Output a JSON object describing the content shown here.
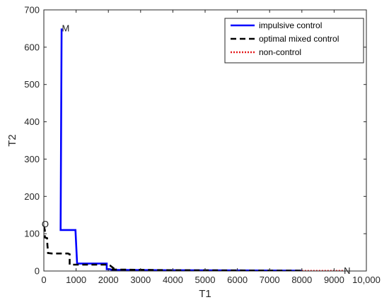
{
  "chart_data": {
    "type": "line",
    "xlabel": "T1",
    "ylabel": "T2",
    "xlim": [
      0,
      10000
    ],
    "ylim": [
      0,
      700
    ],
    "xticks": [
      0,
      1000,
      2000,
      3000,
      4000,
      5000,
      6000,
      7000,
      8000,
      9000,
      10000
    ],
    "xtick_labels": [
      "0",
      "1000",
      "2000",
      "3000",
      "4000",
      "5000",
      "6000",
      "7000",
      "8000",
      "9000",
      "10,000"
    ],
    "yticks": [
      0,
      100,
      200,
      300,
      400,
      500,
      600,
      700
    ],
    "ytick_labels": [
      "0",
      "100",
      "200",
      "300",
      "400",
      "500",
      "600",
      "700"
    ],
    "grid": false,
    "legend_position": "top-right",
    "series": [
      {
        "name": "impulsive control",
        "color": "#0000ff",
        "style": "solid",
        "x": [
          550,
          520,
          550,
          980,
          1030,
          1050,
          1950,
          1950,
          2050,
          2100,
          3800,
          8000
        ],
        "y": [
          650,
          110,
          110,
          110,
          20,
          20,
          20,
          5,
          5,
          3,
          2,
          1
        ]
      },
      {
        "name": "optimal mixed control",
        "color": "#000000",
        "style": "dashed",
        "x": [
          0,
          30,
          30,
          100,
          110,
          120,
          130,
          250,
          750,
          800,
          800,
          2000,
          2050,
          2200,
          2100,
          2200,
          4000,
          8000
        ],
        "y": [
          120,
          110,
          90,
          88,
          70,
          60,
          48,
          47,
          47,
          45,
          17,
          17,
          15,
          5,
          4,
          4,
          2,
          1
        ]
      },
      {
        "name": "non-control",
        "color": "#e41a1c",
        "style": "dotted",
        "x": [
          8000,
          9300
        ],
        "y": [
          0.5,
          0.5
        ]
      }
    ],
    "annotations": [
      {
        "text": "M",
        "x": 560,
        "y": 650
      },
      {
        "text": "O",
        "x": 40,
        "y": 125
      },
      {
        "text": "N",
        "x": 9300,
        "y": 0
      }
    ]
  }
}
